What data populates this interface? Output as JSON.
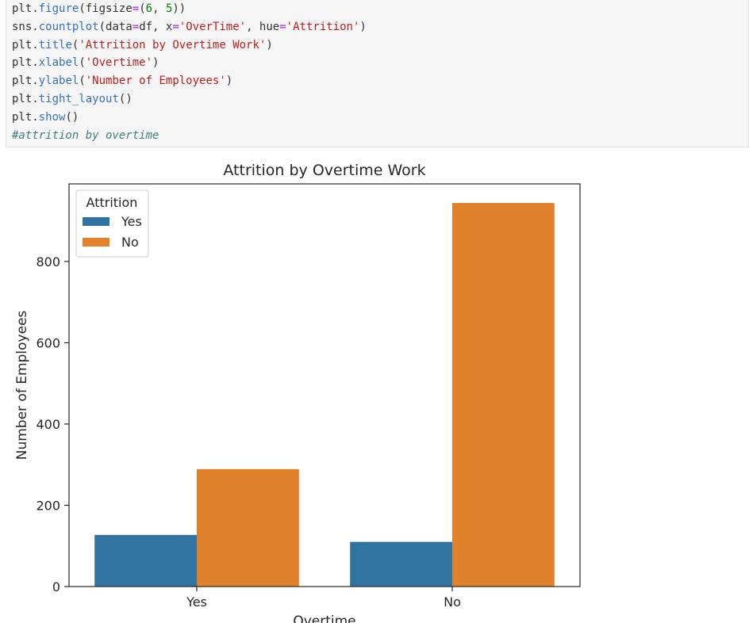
{
  "code_cell": {
    "lines": [
      [
        {
          "t": "plt",
          "c": "v"
        },
        {
          "t": ".",
          "c": "v"
        },
        {
          "t": "figure",
          "c": "f"
        },
        {
          "t": "(",
          "c": "v"
        },
        {
          "t": "figsize",
          "c": "v"
        },
        {
          "t": "=",
          "c": "o"
        },
        {
          "t": "(",
          "c": "v"
        },
        {
          "t": "6",
          "c": "n"
        },
        {
          "t": ", ",
          "c": "v"
        },
        {
          "t": "5",
          "c": "n"
        },
        {
          "t": "))",
          "c": "v"
        }
      ],
      [
        {
          "t": "sns",
          "c": "v"
        },
        {
          "t": ".",
          "c": "v"
        },
        {
          "t": "countplot",
          "c": "f"
        },
        {
          "t": "(",
          "c": "v"
        },
        {
          "t": "data",
          "c": "v"
        },
        {
          "t": "=",
          "c": "o"
        },
        {
          "t": "df, x",
          "c": "v"
        },
        {
          "t": "=",
          "c": "o"
        },
        {
          "t": "'OverTime'",
          "c": "s"
        },
        {
          "t": ", hue",
          "c": "v"
        },
        {
          "t": "=",
          "c": "o"
        },
        {
          "t": "'Attrition'",
          "c": "s"
        },
        {
          "t": ")",
          "c": "v"
        }
      ],
      [
        {
          "t": "plt",
          "c": "v"
        },
        {
          "t": ".",
          "c": "v"
        },
        {
          "t": "title",
          "c": "f"
        },
        {
          "t": "(",
          "c": "v"
        },
        {
          "t": "'Attrition by Overtime Work'",
          "c": "s"
        },
        {
          "t": ")",
          "c": "v"
        }
      ],
      [
        {
          "t": "plt",
          "c": "v"
        },
        {
          "t": ".",
          "c": "v"
        },
        {
          "t": "xlabel",
          "c": "f"
        },
        {
          "t": "(",
          "c": "v"
        },
        {
          "t": "'Overtime'",
          "c": "s"
        },
        {
          "t": ")",
          "c": "v"
        }
      ],
      [
        {
          "t": "plt",
          "c": "v"
        },
        {
          "t": ".",
          "c": "v"
        },
        {
          "t": "ylabel",
          "c": "f"
        },
        {
          "t": "(",
          "c": "v"
        },
        {
          "t": "'Number of Employees'",
          "c": "s"
        },
        {
          "t": ")",
          "c": "v"
        }
      ],
      [
        {
          "t": "plt",
          "c": "v"
        },
        {
          "t": ".",
          "c": "v"
        },
        {
          "t": "tight_layout",
          "c": "f"
        },
        {
          "t": "()",
          "c": "v"
        }
      ],
      [
        {
          "t": "plt",
          "c": "v"
        },
        {
          "t": ".",
          "c": "v"
        },
        {
          "t": "show",
          "c": "f"
        },
        {
          "t": "()",
          "c": "v"
        }
      ],
      [
        {
          "t": "#attrition by overtime",
          "c": "c"
        }
      ]
    ]
  },
  "chart_data": {
    "type": "bar",
    "title": "Attrition by Overtime Work",
    "xlabel": "Overtime",
    "ylabel": "Number of Employees",
    "categories": [
      "Yes",
      "No"
    ],
    "series": [
      {
        "name": "Yes",
        "values": [
          127,
          110
        ],
        "color": "#3274a1"
      },
      {
        "name": "No",
        "values": [
          289,
          944
        ],
        "color": "#e1812c"
      }
    ],
    "ylim": [
      0,
      991
    ],
    "yticks": [
      0,
      200,
      400,
      600,
      800
    ],
    "legend": {
      "title": "Attrition",
      "position": "top-left"
    },
    "grid": false
  }
}
